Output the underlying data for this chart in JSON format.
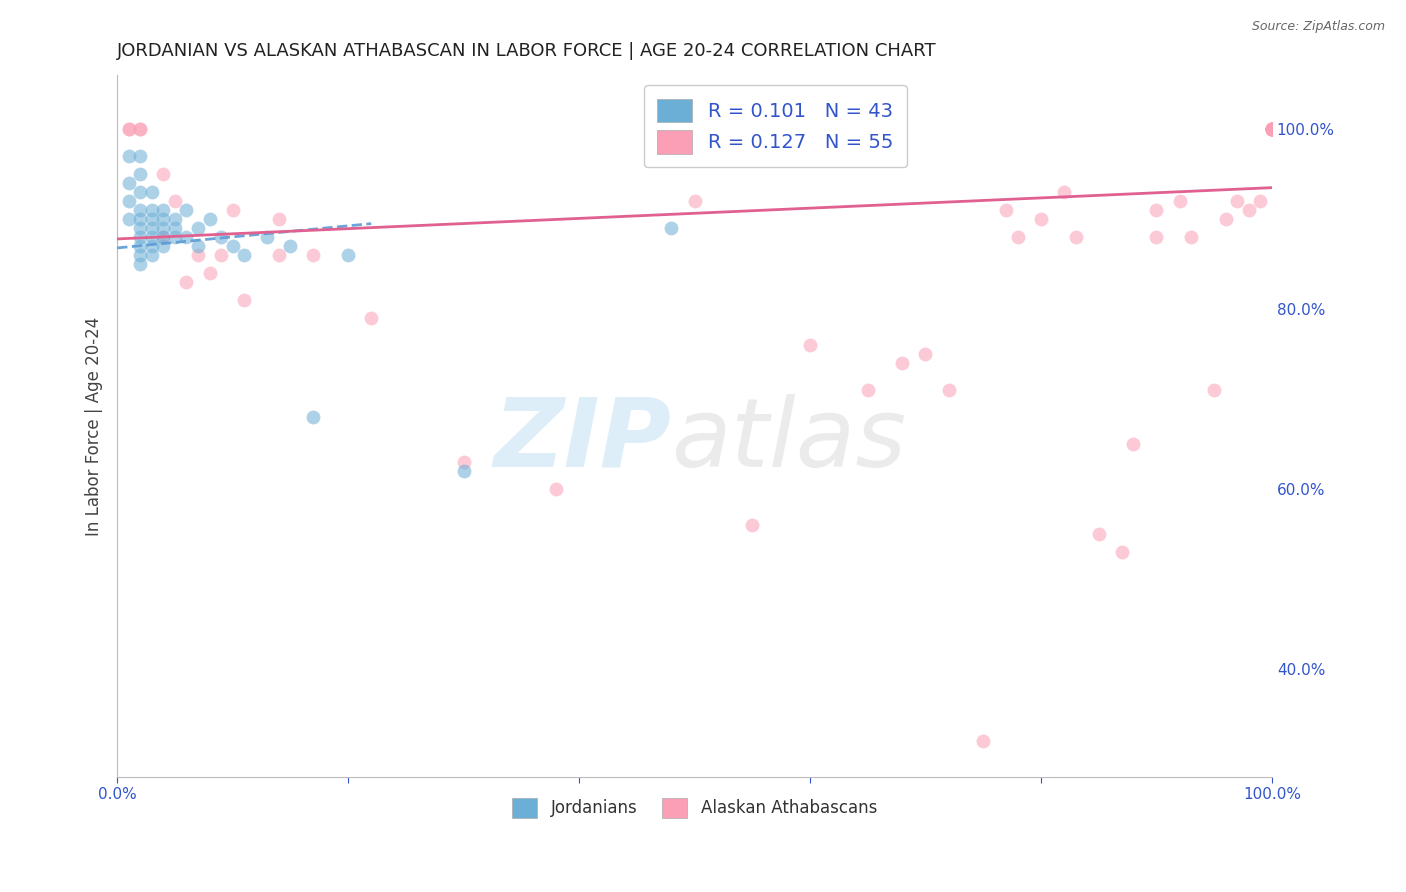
{
  "title": "JORDANIAN VS ALASKAN ATHABASCAN IN LABOR FORCE | AGE 20-24 CORRELATION CHART",
  "source": "Source: ZipAtlas.com",
  "ylabel": "In Labor Force | Age 20-24",
  "xlim": [
    0.0,
    1.0
  ],
  "ylim": [
    0.28,
    1.06
  ],
  "x_ticks": [
    0.0,
    0.2,
    0.4,
    0.6,
    0.8,
    1.0
  ],
  "x_tick_labels": [
    "0.0%",
    "",
    "",
    "",
    "",
    "100.0%"
  ],
  "y_ticks_right": [
    1.0,
    0.8,
    0.6,
    0.4
  ],
  "y_tick_labels_right": [
    "100.0%",
    "80.0%",
    "60.0%",
    "40.0%"
  ],
  "blue_color": "#6baed6",
  "pink_color": "#fa9fb5",
  "blue_line_color": "#5b9bd5",
  "pink_line_color": "#e06090",
  "legend_R_blue": "0.101",
  "legend_N_blue": "43",
  "legend_R_pink": "0.127",
  "legend_N_pink": "55",
  "legend_label_blue": "Jordanians",
  "legend_label_pink": "Alaskan Athabascans",
  "blue_scatter_x": [
    0.01,
    0.01,
    0.01,
    0.01,
    0.02,
    0.02,
    0.02,
    0.02,
    0.02,
    0.02,
    0.02,
    0.02,
    0.02,
    0.02,
    0.03,
    0.03,
    0.03,
    0.03,
    0.03,
    0.03,
    0.03,
    0.04,
    0.04,
    0.04,
    0.04,
    0.04,
    0.05,
    0.05,
    0.05,
    0.06,
    0.06,
    0.07,
    0.07,
    0.08,
    0.09,
    0.1,
    0.11,
    0.13,
    0.15,
    0.17,
    0.2,
    0.3,
    0.48
  ],
  "blue_scatter_y": [
    0.97,
    0.94,
    0.92,
    0.9,
    0.97,
    0.95,
    0.93,
    0.91,
    0.9,
    0.89,
    0.88,
    0.87,
    0.86,
    0.85,
    0.93,
    0.91,
    0.9,
    0.89,
    0.88,
    0.87,
    0.86,
    0.91,
    0.9,
    0.89,
    0.88,
    0.87,
    0.9,
    0.89,
    0.88,
    0.91,
    0.88,
    0.89,
    0.87,
    0.9,
    0.88,
    0.87,
    0.86,
    0.88,
    0.87,
    0.68,
    0.86,
    0.62,
    0.89
  ],
  "pink_scatter_x": [
    0.01,
    0.01,
    0.02,
    0.02,
    0.04,
    0.04,
    0.05,
    0.06,
    0.07,
    0.08,
    0.09,
    0.1,
    0.11,
    0.14,
    0.14,
    0.17,
    0.22,
    0.3,
    0.38,
    0.5,
    0.55,
    0.6,
    0.65,
    0.68,
    0.7,
    0.72,
    0.75,
    0.77,
    0.78,
    0.8,
    0.82,
    0.83,
    0.85,
    0.87,
    0.88,
    0.9,
    0.9,
    0.92,
    0.93,
    0.95,
    0.96,
    0.97,
    0.98,
    0.99,
    1.0,
    1.0,
    1.0,
    1.0,
    1.0,
    1.0,
    1.0,
    1.0,
    1.0,
    1.0,
    1.0
  ],
  "pink_scatter_y": [
    1.0,
    1.0,
    1.0,
    1.0,
    0.95,
    0.88,
    0.92,
    0.83,
    0.86,
    0.84,
    0.86,
    0.91,
    0.81,
    0.86,
    0.9,
    0.86,
    0.79,
    0.63,
    0.6,
    0.92,
    0.56,
    0.76,
    0.71,
    0.74,
    0.75,
    0.71,
    0.32,
    0.91,
    0.88,
    0.9,
    0.93,
    0.88,
    0.55,
    0.53,
    0.65,
    0.91,
    0.88,
    0.92,
    0.88,
    0.71,
    0.9,
    0.92,
    0.91,
    0.92,
    1.0,
    1.0,
    1.0,
    1.0,
    1.0,
    1.0,
    1.0,
    1.0,
    1.0,
    1.0,
    1.0
  ],
  "blue_trend_x0": 0.0,
  "blue_trend_x1": 0.22,
  "blue_trend_y0": 0.868,
  "blue_trend_y1": 0.895,
  "pink_trend_x0": 0.0,
  "pink_trend_x1": 1.0,
  "pink_trend_y0": 0.878,
  "pink_trend_y1": 0.935,
  "grid_color": "#e0e0e0",
  "bg_color": "#ffffff",
  "tick_color": "#3355cc",
  "title_fontsize": 13,
  "label_fontsize": 12,
  "tick_fontsize": 11,
  "marker_size": 100,
  "marker_alpha": 0.55
}
